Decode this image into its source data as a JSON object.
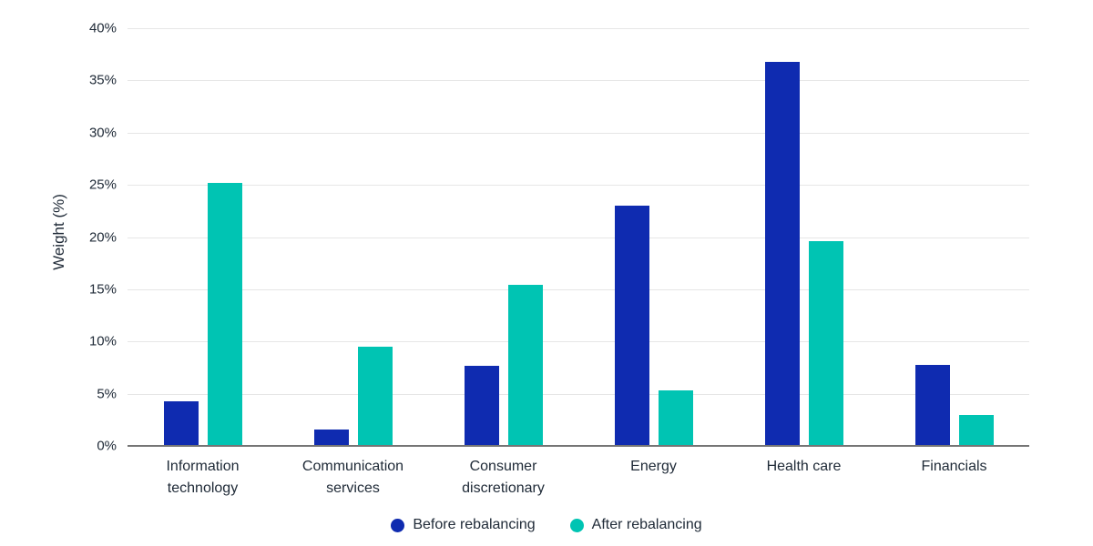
{
  "chart_data": {
    "type": "bar",
    "title": "",
    "ylabel": "Weight (%)",
    "xlabel": "",
    "ylim": [
      0,
      40
    ],
    "ytick_step": 5,
    "ytick_suffix": "%",
    "grid": true,
    "legend_position": "bottom",
    "categories": [
      "Information technology",
      "Communication services",
      "Consumer discretionary",
      "Energy",
      "Health care",
      "Financials"
    ],
    "series": [
      {
        "name": "Before rebalancing",
        "color": "#0f2bb0",
        "values": [
          4.3,
          1.6,
          7.7,
          23.0,
          36.8,
          7.8
        ]
      },
      {
        "name": "After rebalancing",
        "color": "#00c4b3",
        "values": [
          25.2,
          9.5,
          15.4,
          5.3,
          19.6,
          3.0
        ]
      }
    ]
  },
  "colors": {
    "background": "#ffffff",
    "gridline": "#e6e6e6",
    "axis_line": "#757575",
    "text": "#202b38"
  }
}
